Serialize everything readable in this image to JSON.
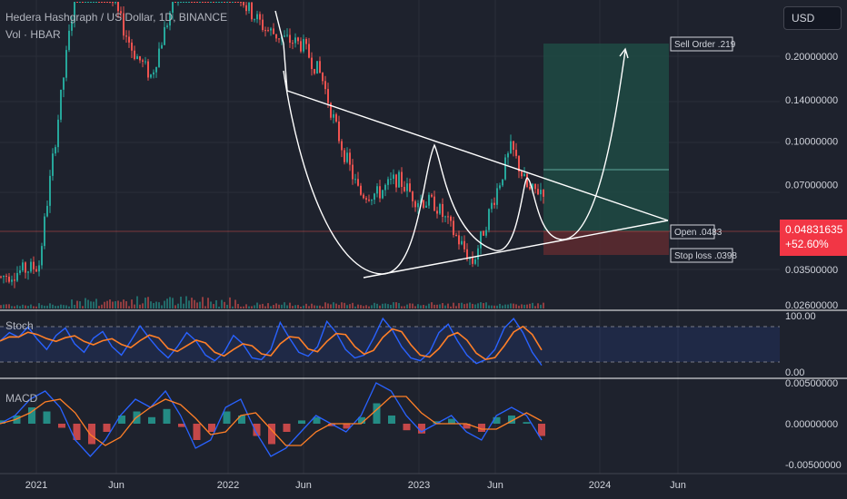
{
  "header": {
    "symbol_line": "Hedera Hashgraph / US Dollar, 1D, BINANCE",
    "volume_label": "Vol · HBAR",
    "currency": "USD"
  },
  "colors": {
    "background": "#1e222d",
    "up": "#26a69a",
    "down": "#ef5350",
    "target_zone": "#1f4a44",
    "stop_zone": "#5a2a30",
    "stoch_k": "#2962ff",
    "stoch_d": "#ff7f27",
    "macd_line": "#2962ff",
    "signal_line": "#ff7f27",
    "price_tag": "#f23645"
  },
  "price_tag": {
    "price": "0.04831635",
    "change": "+52.60%"
  },
  "chart_data": {
    "type": "candlestick",
    "title": "Hedera Hashgraph / US Dollar, 1D, BINANCE",
    "y_scale": "log",
    "y_ticks": [
      "0.20000000",
      "0.14000000",
      "0.10000000",
      "0.07000000",
      "0.03500000",
      "0.02600000"
    ],
    "x_ticks": [
      "2021",
      "Jun",
      "2022",
      "Jun",
      "2023",
      "Jun",
      "2024",
      "Jun"
    ],
    "price_path": [
      {
        "t": "2020-11",
        "p": 0.033
      },
      {
        "t": "2021-01",
        "p": 0.036
      },
      {
        "t": "2021-02",
        "p": 0.12
      },
      {
        "t": "2021-03",
        "p": 0.35
      },
      {
        "t": "2021-04",
        "p": 0.44
      },
      {
        "t": "2021-05",
        "p": 0.31
      },
      {
        "t": "2021-06",
        "p": 0.21
      },
      {
        "t": "2021-07",
        "p": 0.17
      },
      {
        "t": "2021-08",
        "p": 0.29
      },
      {
        "t": "2021-09",
        "p": 0.45
      },
      {
        "t": "2021-10",
        "p": 0.34
      },
      {
        "t": "2021-11",
        "p": 0.42
      },
      {
        "t": "2021-12",
        "p": 0.3
      },
      {
        "t": "2022-01",
        "p": 0.25
      },
      {
        "t": "2022-02",
        "p": 0.23
      },
      {
        "t": "2022-03",
        "p": 0.22
      },
      {
        "t": "2022-04",
        "p": 0.17
      },
      {
        "t": "2022-05",
        "p": 0.1
      },
      {
        "t": "2022-06",
        "p": 0.065
      },
      {
        "t": "2022-07",
        "p": 0.065
      },
      {
        "t": "2022-08",
        "p": 0.074
      },
      {
        "t": "2022-09",
        "p": 0.062
      },
      {
        "t": "2022-10",
        "p": 0.06
      },
      {
        "t": "2022-11",
        "p": 0.047
      },
      {
        "t": "2022-12",
        "p": 0.037
      },
      {
        "t": "2023-01",
        "p": 0.06
      },
      {
        "t": "2023-02",
        "p": 0.095
      },
      {
        "t": "2023-03",
        "p": 0.066
      },
      {
        "t": "2023-04",
        "p": 0.068
      },
      {
        "t": "2023-05",
        "p": 0.053
      },
      {
        "t": "2023-06",
        "p": 0.043
      },
      {
        "t": "2023-07",
        "p": 0.05
      },
      {
        "t": "2023-08",
        "p": 0.075
      },
      {
        "t": "2023-09",
        "p": 0.05
      }
    ],
    "annotations": [
      {
        "label": "Sell Order .219",
        "price": 0.219
      },
      {
        "label": "Open .0483",
        "price": 0.0483
      },
      {
        "label": "Stop loss .0398",
        "price": 0.0398
      }
    ]
  },
  "stoch": {
    "label": "Stoch",
    "y_ticks": [
      "100.00",
      "0.00"
    ],
    "k": [
      55,
      70,
      62,
      80,
      58,
      40,
      65,
      78,
      50,
      35,
      60,
      72,
      45,
      30,
      55,
      82,
      60,
      40,
      25,
      45,
      70,
      55,
      30,
      20,
      35,
      65,
      50,
      25,
      22,
      40,
      88,
      60,
      35,
      28,
      45,
      90,
      70,
      40,
      25,
      30,
      60,
      95,
      75,
      45,
      25,
      20,
      35,
      70,
      85,
      55,
      30,
      15,
      22,
      40,
      78,
      95,
      70,
      35,
      12
    ]
  },
  "macd": {
    "label": "MACD",
    "y_ticks": [
      "0.00500000",
      "0.00000000",
      "-0.00500000"
    ],
    "macd_line": [
      0,
      0.001,
      0.003,
      0.004,
      0.002,
      -0.002,
      -0.004,
      -0.002,
      0.001,
      0.003,
      0.002,
      0.004,
      0.001,
      -0.003,
      -0.002,
      0.002,
      0.003,
      -0.001,
      -0.004,
      -0.003,
      -0.001,
      0.001,
      0,
      -0.001,
      0.001,
      0.005,
      0.004,
      0.001,
      -0.001,
      0,
      0.001,
      -0.001,
      -0.002,
      0.001,
      0.002,
      0.001,
      -0.002
    ],
    "histogram": [
      0.0004,
      0.001,
      0.002,
      0.0015,
      -0.0005,
      -0.002,
      -0.0025,
      -0.001,
      0.001,
      0.0015,
      0.0008,
      0.0018,
      -0.0004,
      -0.002,
      -0.001,
      0.0015,
      0.001,
      -0.0015,
      -0.0025,
      -0.001,
      0.0004,
      0.0008,
      -0.0003,
      -0.0006,
      0.0008,
      0.0025,
      0.001,
      -0.0008,
      -0.0012,
      0.0003,
      0.0006,
      -0.0006,
      -0.001,
      0.0008,
      0.001,
      0.0002,
      -0.0015
    ]
  }
}
